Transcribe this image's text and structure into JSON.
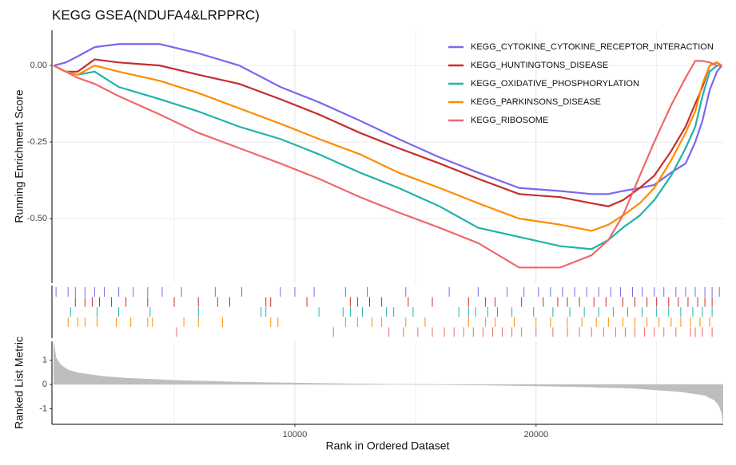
{
  "chart_data": [
    {
      "type": "line",
      "title": "KEGG GSEA(NDUFA4&LRPPRC)",
      "ylabel": "Running Enrichment Score",
      "legend": "top-right",
      "grid": true,
      "x": [
        0,
        500,
        1000,
        1700,
        2700,
        4400,
        6000,
        7700,
        9400,
        11000,
        12700,
        14300,
        16000,
        17600,
        19300,
        21000,
        22300,
        23000,
        23600,
        24300,
        24900,
        25600,
        26200,
        26600,
        26900,
        27200,
        27500,
        27700
      ],
      "xlim": [
        -70,
        27760
      ],
      "xticks": [
        10000,
        20000
      ],
      "xminorticks": [
        5000,
        15000,
        25000
      ],
      "ylim": [
        -0.711,
        0.115
      ],
      "yticks": [
        {
          "value": 0,
          "label": "0.00"
        },
        {
          "value": -0.25,
          "label": "-0.25"
        },
        {
          "value": -0.5,
          "label": "-0.50"
        }
      ],
      "series": [
        {
          "name": "KEGG_CYTOKINE_CYTOKINE_RECEPTOR_INTERACTION",
          "color": "#7b68ee",
          "values": [
            0,
            0.01,
            0.03,
            0.06,
            0.07,
            0.07,
            0.04,
            0.0,
            -0.07,
            -0.12,
            -0.18,
            -0.24,
            -0.3,
            -0.35,
            -0.4,
            -0.41,
            -0.42,
            -0.42,
            -0.41,
            -0.4,
            -0.39,
            -0.35,
            -0.32,
            -0.25,
            -0.18,
            -0.08,
            -0.02,
            0.0
          ],
          "hits": [
            100,
            600,
            900,
            1300,
            1700,
            2100,
            2700,
            3300,
            3900,
            4500,
            5300,
            6700,
            7800,
            9400,
            10000,
            10800,
            12100,
            13000,
            14600,
            16400,
            17600,
            18800,
            19500,
            20100,
            20600,
            21100,
            21600,
            22100,
            22600,
            23100,
            23500,
            24000,
            24400,
            24900,
            25300,
            25800,
            26200,
            26600,
            27000,
            27300,
            27600
          ]
        },
        {
          "name": "KEGG_HUNTINGTONS_DISEASE",
          "color": "#c62d2d",
          "values": [
            0,
            -0.02,
            -0.02,
            0.02,
            0.01,
            0.0,
            -0.03,
            -0.06,
            -0.11,
            -0.16,
            -0.22,
            -0.27,
            -0.32,
            -0.37,
            -0.42,
            -0.43,
            -0.45,
            -0.46,
            -0.44,
            -0.4,
            -0.36,
            -0.28,
            -0.2,
            -0.125,
            -0.07,
            0.0,
            0.01,
            0.0
          ],
          "hits": [
            900,
            1300,
            1600,
            1900,
            2400,
            3000,
            3900,
            5000,
            6000,
            6800,
            7300,
            8800,
            9000,
            10500,
            12300,
            12600,
            13100,
            13600,
            14700,
            15700,
            17200,
            17900,
            18300,
            19400,
            20300,
            20900,
            21300,
            21800,
            22400,
            22900,
            23600,
            24100,
            24600,
            25000,
            25500,
            25900,
            26300,
            26700,
            27000,
            27300
          ]
        },
        {
          "name": "KEGG_OXIDATIVE_PHOSPHORYLATION",
          "color": "#20b2aa",
          "values": [
            0,
            -0.02,
            -0.03,
            -0.02,
            -0.07,
            -0.11,
            -0.15,
            -0.2,
            -0.24,
            -0.29,
            -0.35,
            -0.4,
            -0.46,
            -0.53,
            -0.56,
            -0.59,
            -0.6,
            -0.57,
            -0.53,
            -0.49,
            -0.44,
            -0.36,
            -0.27,
            -0.2,
            -0.1,
            -0.02,
            0.0,
            0.0
          ],
          "hits": [
            700,
            1800,
            2700,
            4000,
            6000,
            8600,
            8800,
            11000,
            12000,
            12300,
            12800,
            13800,
            14100,
            14900,
            16800,
            17200,
            17500,
            18000,
            18400,
            19000,
            19900,
            20700,
            21400,
            22000,
            22600,
            23200,
            23800,
            24400,
            25000,
            25500,
            26000,
            26500,
            26900,
            27300
          ]
        },
        {
          "name": "KEGG_PARKINSONS_DISEASE",
          "color": "#ff8c00",
          "values": [
            0,
            -0.02,
            -0.03,
            0.0,
            -0.02,
            -0.05,
            -0.09,
            -0.14,
            -0.19,
            -0.24,
            -0.29,
            -0.35,
            -0.4,
            -0.45,
            -0.5,
            -0.52,
            -0.54,
            -0.52,
            -0.49,
            -0.45,
            -0.4,
            -0.31,
            -0.22,
            -0.15,
            -0.06,
            0.0,
            0.01,
            0.0
          ],
          "hits": [
            600,
            1000,
            1300,
            1800,
            2600,
            3200,
            3900,
            4100,
            5400,
            6000,
            7000,
            9000,
            9300,
            12100,
            12600,
            13200,
            13600,
            14600,
            15400,
            17200,
            17900,
            18300,
            19100,
            20000,
            20600,
            21300,
            21900,
            22500,
            23000,
            23600,
            24100,
            24600,
            25100,
            25600,
            26000,
            26400,
            26800,
            27200
          ]
        },
        {
          "name": "KEGG_RIBOSOME",
          "color": "#f06868",
          "values": [
            0,
            -0.02,
            -0.04,
            -0.06,
            -0.1,
            -0.16,
            -0.22,
            -0.27,
            -0.32,
            -0.37,
            -0.43,
            -0.48,
            -0.53,
            -0.58,
            -0.66,
            -0.66,
            -0.62,
            -0.57,
            -0.49,
            -0.36,
            -0.25,
            -0.13,
            -0.04,
            0.015,
            0.015,
            0.01,
            0.0,
            0.0
          ],
          "hits": [
            5100,
            11600,
            13900,
            14500,
            15100,
            15700,
            16200,
            16600,
            17000,
            17400,
            17800,
            18200,
            18600,
            19000,
            19400,
            20000,
            20700,
            21300,
            21800,
            22300,
            22800,
            23300,
            23700,
            24100,
            24500,
            24900,
            25300,
            25800,
            26400,
            26600,
            26900,
            27300
          ]
        }
      ]
    },
    {
      "type": "area",
      "ylabel": "Ranked List Metric",
      "xlabel": "Rank in Ordered Dataset",
      "color": "#bebebe",
      "x": [
        0,
        100,
        300,
        600,
        1000,
        2000,
        3000,
        5000,
        8000,
        12000,
        15000,
        18000,
        22000,
        24000,
        26000,
        27000,
        27400,
        27600,
        27700,
        27750
      ],
      "values": [
        1.75,
        1.1,
        0.8,
        0.6,
        0.48,
        0.34,
        0.26,
        0.17,
        0.09,
        0.03,
        0.0,
        -0.03,
        -0.1,
        -0.16,
        -0.3,
        -0.45,
        -0.65,
        -0.9,
        -1.2,
        -1.55
      ],
      "xlim": [
        -70,
        27760
      ],
      "xticks": [
        10000,
        20000
      ],
      "xminorticks": [
        5000,
        15000,
        25000
      ],
      "ylim": [
        -1.64,
        1.77
      ],
      "yticks": [
        1,
        0,
        -1
      ]
    }
  ]
}
